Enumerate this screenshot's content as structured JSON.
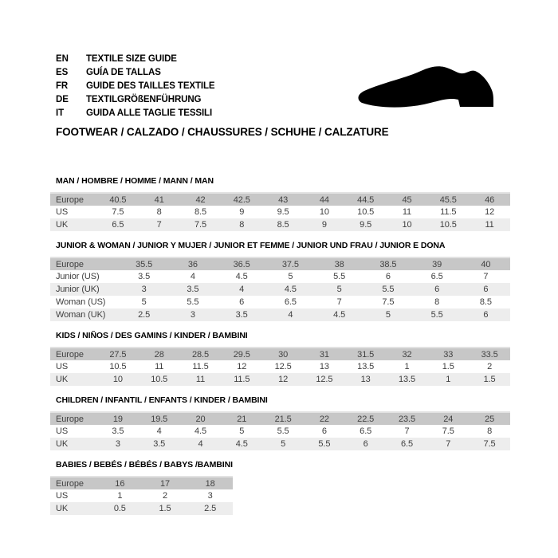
{
  "header": {
    "languages": [
      {
        "code": "EN",
        "label": "TEXTILE SIZE GUIDE"
      },
      {
        "code": "ES",
        "label": "GUÍA DE TALLAS"
      },
      {
        "code": "FR",
        "label": "GUIDE DES TAILLES TEXTILE"
      },
      {
        "code": "DE",
        "label": "TEXTILGRÖßENFÜHRUNG"
      },
      {
        "code": "IT",
        "label": "GUIDA ALLE TAGLIE TESSILI"
      }
    ],
    "category_heading": "FOOTWEAR / CALZADO / CHAUSSURES / SCHUHE / CALZATURE",
    "shoe_icon": "dress-shoe-silhouette"
  },
  "colors": {
    "background": "#ffffff",
    "header_row_bg": "#c7c7c7",
    "alt_row_bg": "#ededed",
    "table_top_border": "#e2e2e2",
    "cell_text": "#3e3e3e",
    "heading_text": "#000000",
    "shoe_fill": "#000000"
  },
  "sections": [
    {
      "title": "MAN / HOMBRE / HOMME / MANN / MAN",
      "rows": [
        {
          "label": "Europe",
          "header": true,
          "values": [
            "40.5",
            "41",
            "42",
            "42.5",
            "43",
            "44",
            "44.5",
            "45",
            "45.5",
            "46"
          ]
        },
        {
          "label": "US",
          "values": [
            "7.5",
            "8",
            "8.5",
            "9",
            "9.5",
            "10",
            "10.5",
            "11",
            "11.5",
            "12"
          ]
        },
        {
          "label": "UK",
          "values": [
            "6.5",
            "7",
            "7.5",
            "8",
            "8.5",
            "9",
            "9.5",
            "10",
            "10.5",
            "11"
          ]
        }
      ]
    },
    {
      "title": "JUNIOR & WOMAN / JUNIOR Y MUJER / JUNIOR ET FEMME / JUNIOR UND FRAU / JUNIOR E DONA",
      "rows": [
        {
          "label": "Europe",
          "header": true,
          "values": [
            "35.5",
            "36",
            "36.5",
            "37.5",
            "38",
            "38.5",
            "39",
            "40"
          ]
        },
        {
          "label": "Junior (US)",
          "values": [
            "3.5",
            "4",
            "4.5",
            "5",
            "5.5",
            "6",
            "6.5",
            "7"
          ]
        },
        {
          "label": "Junior (UK)",
          "values": [
            "3",
            "3.5",
            "4",
            "4.5",
            "5",
            "5.5",
            "6",
            "6"
          ]
        },
        {
          "label": "Woman (US)",
          "values": [
            "5",
            "5.5",
            "6",
            "6.5",
            "7",
            "7.5",
            "8",
            "8.5"
          ]
        },
        {
          "label": "Woman (UK)",
          "values": [
            "2.5",
            "3",
            "3.5",
            "4",
            "4.5",
            "5",
            "5.5",
            "6"
          ]
        }
      ]
    },
    {
      "title": "KIDS / NIÑOS / DES GAMINS / KINDER / BAMBINI",
      "rows": [
        {
          "label": "Europe",
          "header": true,
          "values": [
            "27.5",
            "28",
            "28.5",
            "29.5",
            "30",
            "31",
            "31.5",
            "32",
            "33",
            "33.5"
          ]
        },
        {
          "label": "US",
          "values": [
            "10.5",
            "11",
            "11.5",
            "12",
            "12.5",
            "13",
            "13.5",
            "1",
            "1.5",
            "2"
          ]
        },
        {
          "label": "UK",
          "values": [
            "10",
            "10.5",
            "11",
            "11.5",
            "12",
            "12.5",
            "13",
            "13.5",
            "1",
            "1.5"
          ]
        }
      ]
    },
    {
      "title": "CHILDREN / INFANTIL / ENFANTS / KINDER / BAMBINI",
      "rows": [
        {
          "label": "Europe",
          "header": true,
          "values": [
            "19",
            "19.5",
            "20",
            "21",
            "21.5",
            "22",
            "22.5",
            "23.5",
            "24",
            "25"
          ]
        },
        {
          "label": "US",
          "values": [
            "3.5",
            "4",
            "4.5",
            "5",
            "5.5",
            "6",
            "6.5",
            "7",
            "7.5",
            "8"
          ]
        },
        {
          "label": "UK",
          "values": [
            "3",
            "3.5",
            "4",
            "4.5",
            "5",
            "5.5",
            "6",
            "6.5",
            "7",
            "7.5"
          ]
        }
      ]
    },
    {
      "title": "BABIES  / BEBÉS / BÉBÉS / BABYS /BAMBINI",
      "compact": true,
      "rows": [
        {
          "label": "Europe",
          "header": true,
          "values": [
            "16",
            "17",
            "18"
          ]
        },
        {
          "label": "US",
          "values": [
            "1",
            "2",
            "3"
          ]
        },
        {
          "label": "UK",
          "values": [
            "0.5",
            "1.5",
            "2.5"
          ]
        }
      ]
    }
  ]
}
